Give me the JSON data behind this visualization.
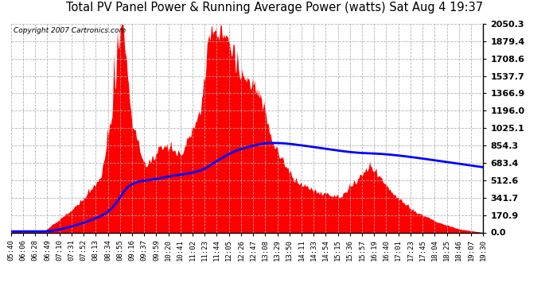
{
  "title": "Total PV Panel Power & Running Average Power (watts) Sat Aug 4 19:37",
  "copyright": "Copyright 2007 Cartronics.com",
  "background_color": "#ffffff",
  "plot_bg_color": "#ffffff",
  "fill_color": "#ff0000",
  "line_color": "#0000ff",
  "grid_color": "#aaaaaa",
  "yticks": [
    0.0,
    170.9,
    341.7,
    512.6,
    683.4,
    854.3,
    1025.1,
    1196.0,
    1366.9,
    1537.7,
    1708.6,
    1879.4,
    2050.3
  ],
  "ymax": 2050.3,
  "ymin": 0.0,
  "xtick_labels": [
    "05:40",
    "06:06",
    "06:28",
    "06:49",
    "07:10",
    "07:31",
    "07:52",
    "08:13",
    "08:34",
    "08:55",
    "09:16",
    "09:37",
    "09:59",
    "10:20",
    "10:41",
    "11:02",
    "11:23",
    "11:44",
    "12:05",
    "12:26",
    "12:47",
    "13:08",
    "13:29",
    "13:50",
    "14:11",
    "14:33",
    "14:54",
    "15:15",
    "15:36",
    "15:57",
    "16:19",
    "16:40",
    "17:01",
    "17:23",
    "17:45",
    "18:04",
    "18:25",
    "18:46",
    "19:07",
    "19:30"
  ]
}
